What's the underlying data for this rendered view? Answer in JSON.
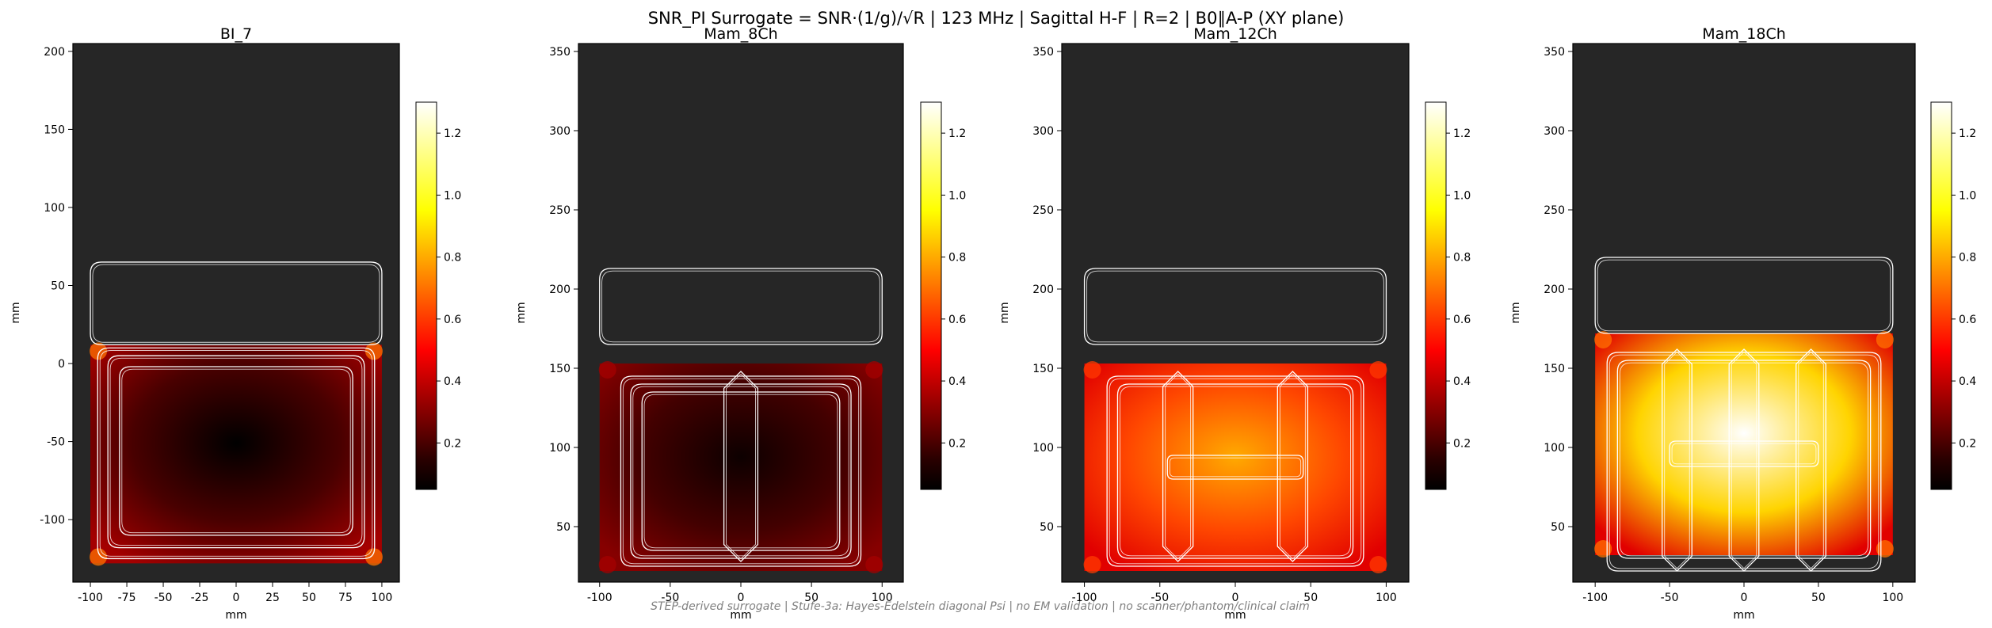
{
  "figure": {
    "title": "SNR_PI Surrogate = SNR·(1/g)/√R | 123 MHz | Sagittal H-F | R=2 | B0∥A-P (XY plane)",
    "footnote": "STEP-derived surrogate | Stufe-3a: Hayes-Edelstein diagonal Psi | no EM validation | no scanner/phantom/clinical claim",
    "colormap": "hot",
    "background_color": "#262626",
    "coil_outline_color": "#ffffff"
  },
  "chart_data": [
    {
      "type": "heatmap",
      "title": "BI_7",
      "xlabel": "mm",
      "ylabel": "mm",
      "xlim": [
        -112,
        112
      ],
      "ylim": [
        -140,
        205
      ],
      "xticks": [
        -100,
        -75,
        -50,
        -25,
        0,
        25,
        50,
        75,
        100
      ],
      "yticks": [
        -100,
        -50,
        0,
        50,
        100,
        150,
        200
      ],
      "phantom_extent": {
        "x": [
          -100,
          100
        ],
        "y": [
          -128,
          12
        ]
      },
      "colorbar": {
        "min": 0.05,
        "max": 1.3,
        "ticks": [
          0.2,
          0.4,
          0.6,
          0.8,
          1.0,
          1.2
        ]
      },
      "snr_field": {
        "center": 0.05,
        "edge": 0.35,
        "corner_hotspots": 0.7
      },
      "coil_outlines": [
        {
          "shape": "rounded-rect",
          "x": [
            -100,
            100
          ],
          "y": [
            12,
            65
          ]
        },
        {
          "shape": "rounded-rect",
          "x": [
            -95,
            95
          ],
          "y": [
            -125,
            10
          ]
        },
        {
          "shape": "rounded-rect",
          "x": [
            -88,
            88
          ],
          "y": [
            -118,
            5
          ]
        },
        {
          "shape": "rounded-rect",
          "x": [
            -80,
            80
          ],
          "y": [
            -110,
            -2
          ]
        }
      ]
    },
    {
      "type": "heatmap",
      "title": "Mam_8Ch",
      "xlabel": "mm",
      "ylabel": "mm",
      "xlim": [
        -115,
        115
      ],
      "ylim": [
        15,
        355
      ],
      "xticks": [
        -100,
        -50,
        0,
        50,
        100
      ],
      "yticks": [
        50,
        100,
        150,
        200,
        250,
        300,
        350
      ],
      "phantom_extent": {
        "x": [
          -100,
          100
        ],
        "y": [
          22,
          153
        ]
      },
      "colorbar": {
        "min": 0.05,
        "max": 1.3,
        "ticks": [
          0.2,
          0.4,
          0.6,
          0.8,
          1.0,
          1.2
        ]
      },
      "snr_field": {
        "center": 0.08,
        "edge": 0.3,
        "corner_hotspots": 0.35
      },
      "coil_outlines": [
        {
          "shape": "rounded-rect",
          "x": [
            -100,
            100
          ],
          "y": [
            165,
            213
          ]
        },
        {
          "shape": "rounded-rect",
          "x": [
            -85,
            85
          ],
          "y": [
            25,
            145
          ]
        },
        {
          "shape": "rounded-rect",
          "x": [
            -78,
            78
          ],
          "y": [
            30,
            140
          ]
        },
        {
          "shape": "rounded-rect",
          "x": [
            -70,
            70
          ],
          "y": [
            35,
            135
          ]
        },
        {
          "shape": "octagon",
          "x": [
            -12,
            12
          ],
          "y": [
            28,
            148
          ]
        }
      ]
    },
    {
      "type": "heatmap",
      "title": "Mam_12Ch",
      "xlabel": "mm",
      "ylabel": "mm",
      "xlim": [
        -115,
        115
      ],
      "ylim": [
        15,
        355
      ],
      "xticks": [
        -100,
        -50,
        0,
        50,
        100
      ],
      "yticks": [
        50,
        100,
        150,
        200,
        250,
        300,
        350
      ],
      "phantom_extent": {
        "x": [
          -100,
          100
        ],
        "y": [
          22,
          153
        ]
      },
      "colorbar": {
        "min": 0.05,
        "max": 1.3,
        "ticks": [
          0.2,
          0.4,
          0.6,
          0.8,
          1.0,
          1.2
        ]
      },
      "snr_field": {
        "center": 0.8,
        "edge": 0.45,
        "corner_hotspots": 0.6
      },
      "coil_outlines": [
        {
          "shape": "rounded-rect",
          "x": [
            -100,
            100
          ],
          "y": [
            165,
            213
          ]
        },
        {
          "shape": "rounded-rect",
          "x": [
            -85,
            85
          ],
          "y": [
            25,
            145
          ]
        },
        {
          "shape": "rounded-rect",
          "x": [
            -78,
            78
          ],
          "y": [
            30,
            140
          ]
        },
        {
          "shape": "octagon",
          "x": [
            -48,
            -28
          ],
          "y": [
            28,
            148
          ]
        },
        {
          "shape": "octagon",
          "x": [
            28,
            48
          ],
          "y": [
            28,
            148
          ]
        },
        {
          "shape": "rounded-rect",
          "x": [
            -45,
            45
          ],
          "y": [
            80,
            95
          ]
        }
      ]
    },
    {
      "type": "heatmap",
      "title": "Mam_18Ch",
      "xlabel": "mm",
      "ylabel": "mm",
      "xlim": [
        -115,
        115
      ],
      "ylim": [
        15,
        355
      ],
      "xticks": [
        -100,
        -50,
        0,
        50,
        100
      ],
      "yticks": [
        50,
        100,
        150,
        200,
        250,
        300,
        350
      ],
      "phantom_extent": {
        "x": [
          -100,
          100
        ],
        "y": [
          32,
          172
        ]
      },
      "colorbar": {
        "min": 0.05,
        "max": 1.3,
        "ticks": [
          0.2,
          0.4,
          0.6,
          0.8,
          1.0,
          1.2
        ]
      },
      "snr_field": {
        "center": 1.3,
        "edge": 0.45,
        "corner_hotspots": 0.7
      },
      "coil_outlines": [
        {
          "shape": "rounded-rect",
          "x": [
            -100,
            100
          ],
          "y": [
            172,
            220
          ]
        },
        {
          "shape": "rounded-rect",
          "x": [
            -92,
            92
          ],
          "y": [
            22,
            160
          ]
        },
        {
          "shape": "rounded-rect",
          "x": [
            -85,
            85
          ],
          "y": [
            30,
            155
          ]
        },
        {
          "shape": "octagon",
          "x": [
            -55,
            -35
          ],
          "y": [
            22,
            162
          ]
        },
        {
          "shape": "octagon",
          "x": [
            -10,
            10
          ],
          "y": [
            22,
            162
          ]
        },
        {
          "shape": "octagon",
          "x": [
            35,
            55
          ],
          "y": [
            22,
            162
          ]
        },
        {
          "shape": "rounded-rect",
          "x": [
            -50,
            50
          ],
          "y": [
            88,
            104
          ]
        }
      ]
    }
  ]
}
